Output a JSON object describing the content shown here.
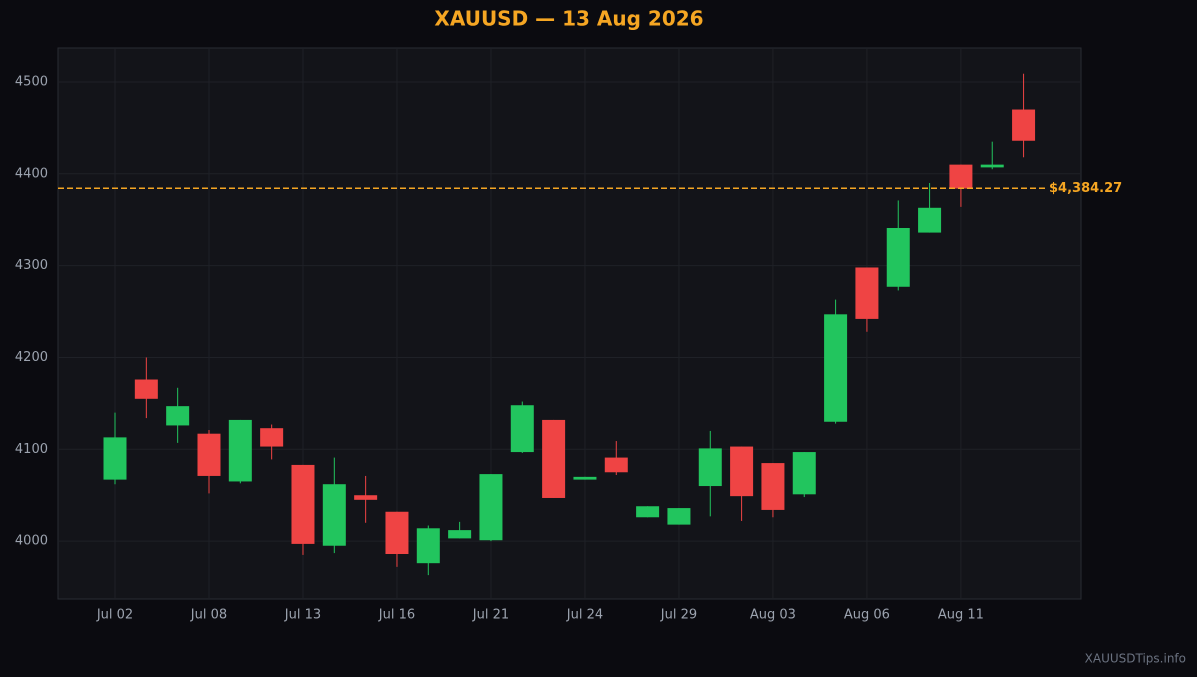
{
  "chart_data": {
    "type": "candlestick",
    "title": "XAUUSD — 13 Aug 2026",
    "categories": [
      "Jul 02",
      null,
      null,
      "Jul 08",
      null,
      null,
      "Jul 13",
      null,
      null,
      "Jul 16",
      null,
      null,
      "Jul 21",
      null,
      null,
      "Jul 24",
      null,
      null,
      "Jul 29",
      null,
      null,
      "Aug 03",
      null,
      null,
      "Aug 06",
      null,
      null,
      "Aug 11",
      null,
      null
    ],
    "open": [
      4067,
      4176,
      4126,
      4117,
      4065,
      4123,
      4083,
      3995,
      4050,
      4032,
      3976,
      4003,
      4001,
      4097,
      4132,
      4067,
      4091,
      4026,
      4018,
      4060,
      4103,
      4085,
      4051,
      4130,
      4298,
      4277,
      4336,
      4410,
      4407,
      4470
    ],
    "high": [
      4140,
      4200,
      4167,
      4121,
      4132,
      4127,
      4083,
      4091,
      4071,
      4032,
      4017,
      4021,
      4073,
      4152,
      4132,
      4070,
      4109,
      4038,
      4036,
      4120,
      4103,
      4085,
      4097,
      4263,
      4298,
      4371,
      4390,
      4410,
      4435,
      4509
    ],
    "low": [
      4062,
      4134,
      4107,
      4052,
      4063,
      4089,
      3985,
      3987,
      4020,
      3972,
      3963,
      4003,
      4000,
      4096,
      4047,
      4067,
      4072,
      4026,
      4018,
      4027,
      4022,
      4026,
      4048,
      4128,
      4228,
      4273,
      4336,
      4364,
      4405,
      4418
    ],
    "close": [
      4113,
      4155,
      4147,
      4071,
      4132,
      4103,
      3997,
      4062,
      4045,
      3986,
      4014,
      4012,
      4073,
      4148,
      4047,
      4070,
      4075,
      4038,
      4036,
      4101,
      4049,
      4034,
      4097,
      4247,
      4242,
      4341,
      4363,
      4384,
      4410,
      4436
    ],
    "up_color": "#22c55e",
    "down_color": "#ef4444",
    "ylim": [
      3937,
      4537
    ],
    "yticks": [
      4000,
      4100,
      4200,
      4300,
      4400,
      4500
    ],
    "grid": true,
    "reference_line": {
      "value": 4384.27,
      "label": "$4,384.27",
      "color": "#f5a623"
    },
    "watermark": "XAUUSDTips.info"
  }
}
